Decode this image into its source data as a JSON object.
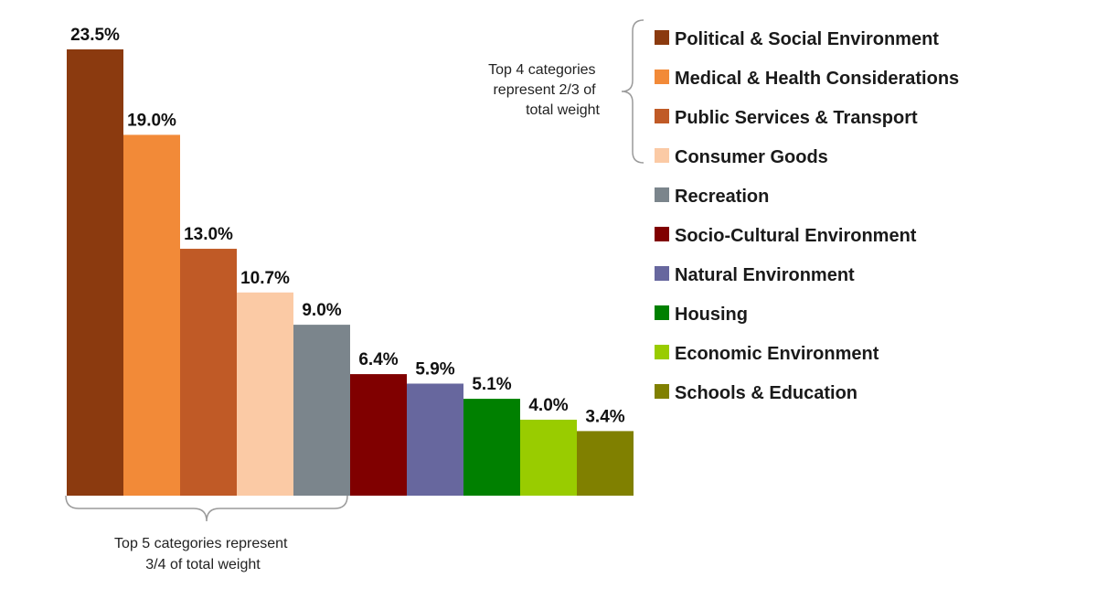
{
  "chart_data": {
    "type": "bar",
    "title": "",
    "xlabel": "",
    "ylabel": "",
    "ylim": [
      0,
      24
    ],
    "series": [
      {
        "values": [
          23.5,
          19.0,
          13.0,
          10.7,
          9.0,
          6.4,
          5.9,
          5.1,
          4.0,
          3.4
        ],
        "labels": [
          "23.5%",
          "19.0%",
          "13.0%",
          "10.7%",
          "9.0%",
          "6.4%",
          "5.9%",
          "5.1%",
          "4.0%",
          "3.4%"
        ]
      }
    ],
    "categories": [
      "Political & Social Environment",
      "Medical & Health Considerations",
      "Public Services & Transport",
      "Consumer Goods",
      "Recreation",
      "Socio-Cultural Environment",
      "Natural Environment",
      "Housing",
      "Economic Environment",
      "Schools & Education"
    ],
    "colors": [
      "#8b3a0f",
      "#f28a38",
      "#c05a26",
      "#fbcaa5",
      "#7b858c",
      "#800000",
      "#67679e",
      "#008000",
      "#99cc00",
      "#808000"
    ],
    "legend_position": "right",
    "grid": false
  },
  "annotations": {
    "top4_lines": [
      "Top 4 categories",
      "represent 2/3 of",
      "total weight"
    ],
    "top5_lines": [
      "Top 5 categories represent",
      "3/4 of total weight"
    ]
  }
}
